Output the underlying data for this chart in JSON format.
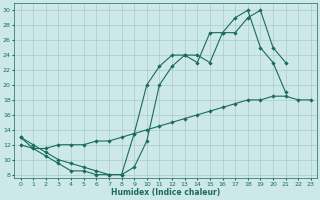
{
  "xlabel": "Humidex (Indice chaleur)",
  "xlim": [
    -0.5,
    23.5
  ],
  "ylim": [
    7.5,
    31
  ],
  "yticks": [
    8,
    10,
    12,
    14,
    16,
    18,
    20,
    22,
    24,
    26,
    28,
    30
  ],
  "xticks": [
    0,
    1,
    2,
    3,
    4,
    5,
    6,
    7,
    8,
    9,
    10,
    11,
    12,
    13,
    14,
    15,
    16,
    17,
    18,
    19,
    20,
    21,
    22,
    23
  ],
  "bg_color": "#cce8e8",
  "grid_color": "#aacccc",
  "line_color": "#1a6b5a",
  "line1_x": [
    0,
    1,
    2,
    3,
    4,
    5,
    6,
    7,
    8,
    9,
    10,
    11,
    12,
    13,
    14,
    15,
    16,
    17,
    18,
    19,
    20,
    21
  ],
  "line1_y": [
    13,
    12,
    11,
    10,
    9.5,
    9,
    8.5,
    8,
    8,
    9,
    12.5,
    20,
    22.5,
    24,
    24,
    23,
    27,
    27,
    29,
    30,
    25,
    23
  ],
  "line2_x": [
    0,
    1,
    2,
    3,
    4,
    5,
    6,
    7,
    8,
    9,
    10,
    11,
    12,
    13,
    14,
    15,
    16,
    17,
    18,
    19,
    20,
    21,
    22,
    23
  ],
  "line2_y": [
    12,
    11.5,
    11.5,
    12,
    12,
    12,
    12.5,
    12.5,
    13,
    13.5,
    14,
    14.5,
    15,
    15.5,
    16,
    16.5,
    17,
    17.5,
    18,
    18,
    18.5,
    18.5,
    18,
    18
  ],
  "line3_x": [
    0,
    1,
    2,
    3,
    4,
    5,
    6,
    7,
    8,
    9,
    10,
    11,
    12,
    13,
    14,
    15,
    16,
    17,
    18,
    19,
    20,
    21
  ],
  "line3_y": [
    13,
    11.5,
    10.5,
    9.5,
    8.5,
    8.5,
    8,
    8,
    8,
    13.5,
    20,
    22.5,
    24,
    24,
    23,
    27,
    27,
    29,
    30,
    25,
    23,
    19
  ]
}
